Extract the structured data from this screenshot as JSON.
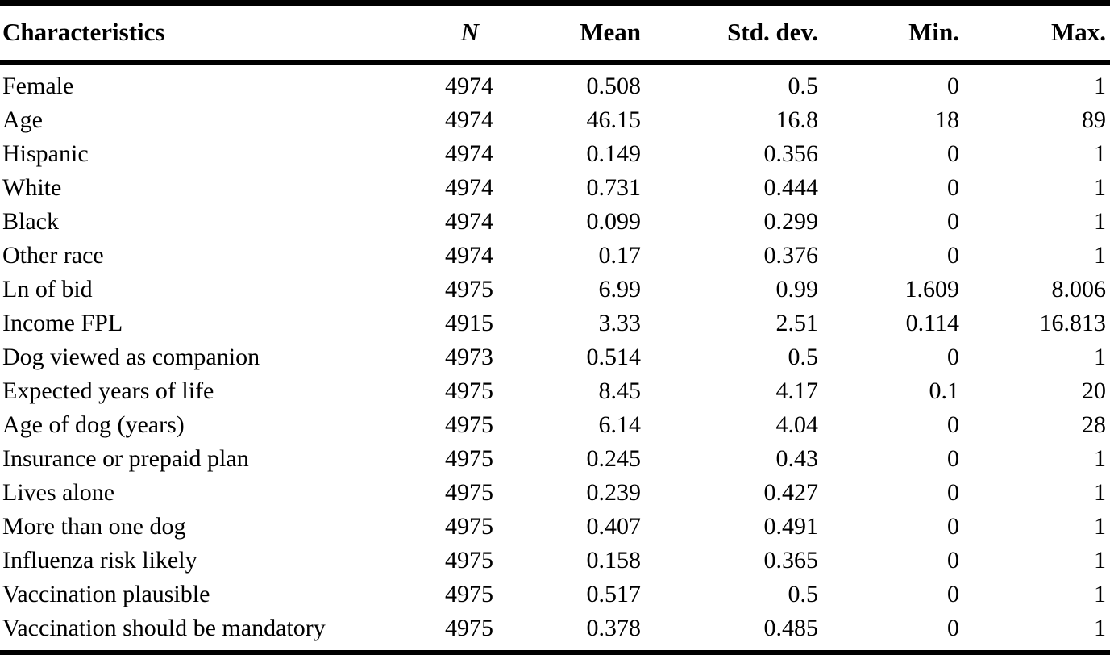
{
  "table": {
    "columns": [
      {
        "key": "characteristic",
        "label": "Characteristics"
      },
      {
        "key": "n",
        "label": "N"
      },
      {
        "key": "mean",
        "label": "Mean"
      },
      {
        "key": "std_dev",
        "label": "Std. dev."
      },
      {
        "key": "min",
        "label": "Min."
      },
      {
        "key": "max",
        "label": "Max."
      }
    ],
    "rows": [
      [
        "Female",
        "4974",
        "0.508",
        "0.5",
        "0",
        "1"
      ],
      [
        "Age",
        "4974",
        "46.15",
        "16.8",
        "18",
        "89"
      ],
      [
        "Hispanic",
        "4974",
        "0.149",
        "0.356",
        "0",
        "1"
      ],
      [
        "White",
        "4974",
        "0.731",
        "0.444",
        "0",
        "1"
      ],
      [
        "Black",
        "4974",
        "0.099",
        "0.299",
        "0",
        "1"
      ],
      [
        "Other race",
        "4974",
        "0.17",
        "0.376",
        "0",
        "1"
      ],
      [
        "Ln of bid",
        "4975",
        "6.99",
        "0.99",
        "1.609",
        "8.006"
      ],
      [
        "Income FPL",
        "4915",
        "3.33",
        "2.51",
        "0.114",
        "16.813"
      ],
      [
        "Dog viewed as companion",
        "4973",
        "0.514",
        "0.5",
        "0",
        "1"
      ],
      [
        "Expected years of life",
        "4975",
        "8.45",
        "4.17",
        "0.1",
        "20"
      ],
      [
        "Age of dog (years)",
        "4975",
        "6.14",
        "4.04",
        "0",
        "28"
      ],
      [
        "Insurance or prepaid plan",
        "4975",
        "0.245",
        "0.43",
        "0",
        "1"
      ],
      [
        "Lives alone",
        "4975",
        "0.239",
        "0.427",
        "0",
        "1"
      ],
      [
        "More than one dog",
        "4975",
        "0.407",
        "0.491",
        "0",
        "1"
      ],
      [
        "Influenza risk likely",
        "4975",
        "0.158",
        "0.365",
        "0",
        "1"
      ],
      [
        "Vaccination plausible",
        "4975",
        "0.517",
        "0.5",
        "0",
        "1"
      ],
      [
        "Vaccination should be mandatory",
        "4975",
        "0.378",
        "0.485",
        "0",
        "1"
      ]
    ],
    "colors": {
      "text": "#000000",
      "background": "#ffffff",
      "rule": "#000000"
    }
  }
}
